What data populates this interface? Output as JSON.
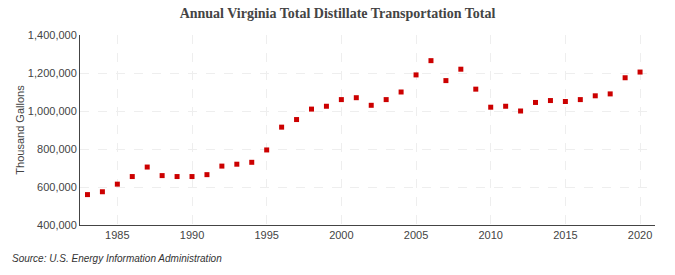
{
  "chart_data": {
    "type": "scatter",
    "title": "Annual Virginia Total Distillate Transportation Total",
    "ylabel": "Thousand Gallons",
    "source": "Source: U.S. Energy Information Administration",
    "color": "#cc0000",
    "marker": "square",
    "x": [
      1983,
      1984,
      1985,
      1986,
      1987,
      1988,
      1989,
      1990,
      1991,
      1992,
      1993,
      1994,
      1995,
      1996,
      1997,
      1998,
      1999,
      2000,
      2001,
      2002,
      2003,
      2004,
      2005,
      2006,
      2007,
      2008,
      2009,
      2010,
      2011,
      2012,
      2013,
      2014,
      2015,
      2016,
      2017,
      2018,
      2019,
      2020
    ],
    "values": [
      560000,
      575000,
      615000,
      655000,
      705000,
      660000,
      655000,
      655000,
      665000,
      710000,
      720000,
      730000,
      795000,
      915000,
      955000,
      1010000,
      1025000,
      1060000,
      1070000,
      1030000,
      1060000,
      1100000,
      1190000,
      1265000,
      1160000,
      1220000,
      1115000,
      1020000,
      1025000,
      1000000,
      1045000,
      1055000,
      1050000,
      1060000,
      1080000,
      1090000,
      1175000,
      1205000
    ],
    "xlim": [
      1982.5,
      2021
    ],
    "xticks": [
      1985,
      1990,
      1995,
      2000,
      2005,
      2010,
      2015,
      2020
    ],
    "ylim": [
      400000,
      1400000
    ],
    "yticks": [
      {
        "value": 400000,
        "label": "400,000"
      },
      {
        "value": 600000,
        "label": "600,000"
      },
      {
        "value": 800000,
        "label": "800,000"
      },
      {
        "value": 1000000,
        "label": "1,000,000"
      },
      {
        "value": 1200000,
        "label": "1,200,000"
      },
      {
        "value": 1400000,
        "label": "1,400,000"
      }
    ],
    "grid": true
  }
}
